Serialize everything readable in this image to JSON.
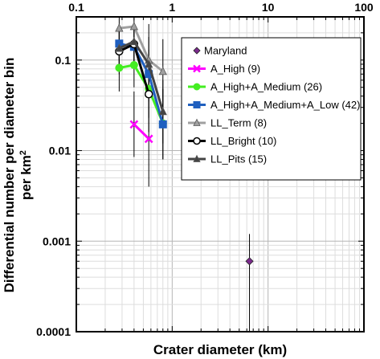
{
  "chart_data": {
    "type": "scatter",
    "xscale": "log",
    "yscale": "log",
    "xlim": [
      0.1,
      100
    ],
    "ylim": [
      0.0001,
      0.3
    ],
    "x_ticks": [
      "0.1",
      "1",
      "10",
      "100"
    ],
    "y_ticks": [
      "0.0001",
      "0.001",
      "0.01",
      "0.1"
    ],
    "xlabel": "Crater diameter (km)",
    "ylabel_line1": "Differential number per diameter bin",
    "ylabel_line2": "per km",
    "ylabel_sup": "2",
    "grid": true,
    "legend_position": "right",
    "series": [
      {
        "name": "Maryland",
        "color": "#7B2A8C",
        "marker": "diamond",
        "line": false,
        "points": [
          {
            "x": 6.4,
            "y": 0.0006,
            "ylo": 0.0001,
            "yhi": 0.0012
          }
        ]
      },
      {
        "name": "A_High (9)",
        "color": "#FF00FF",
        "marker": "x",
        "line": true,
        "points": [
          {
            "x": 0.4,
            "y": 0.0195,
            "ylo": 0.0085,
            "yhi": 0.045
          },
          {
            "x": 0.57,
            "y": 0.0135,
            "ylo": 0.004,
            "yhi": 0.04
          }
        ]
      },
      {
        "name": "A_High+A_Medium (26)",
        "color": "#44EE22",
        "marker": "circle",
        "line": true,
        "points": [
          {
            "x": 0.28,
            "y": 0.082,
            "ylo": 0.045,
            "yhi": 0.155
          },
          {
            "x": 0.4,
            "y": 0.088,
            "ylo": 0.05,
            "yhi": 0.16
          },
          {
            "x": 0.57,
            "y": 0.048,
            "ylo": 0.023,
            "yhi": 0.1
          },
          {
            "x": 0.8,
            "y": 0.02,
            "ylo": 0.008,
            "yhi": 0.048
          }
        ]
      },
      {
        "name": "A_High+A_Medium+A_Low (42)",
        "color": "#1F5FBF",
        "marker": "square",
        "line": true,
        "points": [
          {
            "x": 0.28,
            "y": 0.152,
            "ylo": 0.09,
            "yhi": 0.25
          },
          {
            "x": 0.4,
            "y": 0.14,
            "ylo": 0.085,
            "yhi": 0.23
          },
          {
            "x": 0.57,
            "y": 0.07,
            "ylo": 0.038,
            "yhi": 0.13
          },
          {
            "x": 0.8,
            "y": 0.0195,
            "ylo": 0.008,
            "yhi": 0.048
          }
        ]
      },
      {
        "name": "LL_Term (8)",
        "color": "#A0A0A0",
        "marker": "triangle",
        "line": true,
        "points": [
          {
            "x": 0.28,
            "y": 0.225,
            "ylo": 0.1,
            "yhi": 0.3
          },
          {
            "x": 0.4,
            "y": 0.235,
            "ylo": 0.1,
            "yhi": 0.3
          },
          {
            "x": 0.57,
            "y": 0.1,
            "ylo": 0.035,
            "yhi": 0.25
          },
          {
            "x": 0.8,
            "y": 0.075,
            "ylo": 0.03,
            "yhi": 0.17
          }
        ]
      },
      {
        "name": "LL_Bright (10)",
        "color": "#000000",
        "marker": "open-circle",
        "line": true,
        "points": [
          {
            "x": 0.28,
            "y": 0.125,
            "ylo": 0.07,
            "yhi": 0.22
          },
          {
            "x": 0.4,
            "y": 0.15,
            "ylo": 0.08,
            "yhi": 0.26
          },
          {
            "x": 0.57,
            "y": 0.042,
            "ylo": 0.016,
            "yhi": 0.11
          }
        ]
      },
      {
        "name": "LL_Pits (15)",
        "color": "#444444",
        "marker": "triangle",
        "line": true,
        "points": [
          {
            "x": 0.28,
            "y": 0.135,
            "ylo": 0.075,
            "yhi": 0.23
          },
          {
            "x": 0.4,
            "y": 0.16,
            "ylo": 0.09,
            "yhi": 0.26
          },
          {
            "x": 0.57,
            "y": 0.09,
            "ylo": 0.045,
            "yhi": 0.18
          },
          {
            "x": 0.8,
            "y": 0.027,
            "ylo": 0.012,
            "yhi": 0.06
          }
        ]
      }
    ]
  }
}
